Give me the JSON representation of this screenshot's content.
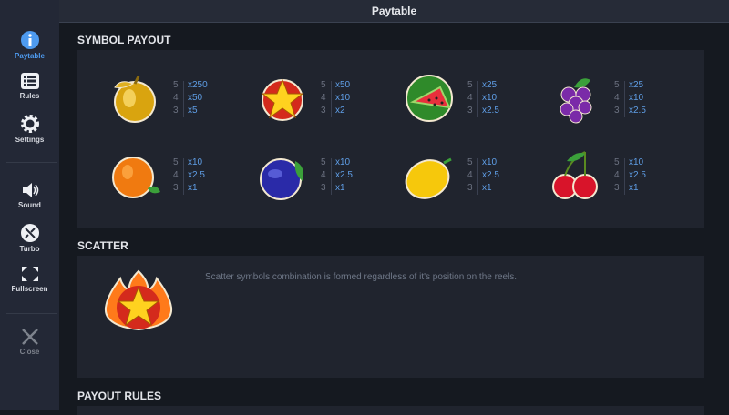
{
  "title": "Paytable",
  "sidebar": {
    "items": [
      {
        "label": "Paytable",
        "icon": "info-icon"
      },
      {
        "label": "Rules",
        "icon": "list-icon"
      },
      {
        "label": "Settings",
        "icon": "gear-icon"
      },
      {
        "label": "Sound",
        "icon": "speaker-icon"
      },
      {
        "label": "Turbo",
        "icon": "turbo-icon"
      },
      {
        "label": "Fullscreen",
        "icon": "fullscreen-icon"
      },
      {
        "label": "Close",
        "icon": "close-icon"
      }
    ],
    "active_color": "#4e9bf0"
  },
  "sections": {
    "symbol_payout": "SYMBOL PAYOUT",
    "scatter": "SCATTER",
    "payout_rules": "PAYOUT RULES"
  },
  "symbols": [
    {
      "name": "golden-apple",
      "counts": [
        "5",
        "4",
        "3"
      ],
      "values": [
        "x250",
        "x50",
        "x5"
      ]
    },
    {
      "name": "star",
      "counts": [
        "5",
        "4",
        "3"
      ],
      "values": [
        "x50",
        "x10",
        "x2"
      ]
    },
    {
      "name": "watermelon",
      "counts": [
        "5",
        "4",
        "3"
      ],
      "values": [
        "x25",
        "x10",
        "x2.5"
      ]
    },
    {
      "name": "grapes",
      "counts": [
        "5",
        "4",
        "3"
      ],
      "values": [
        "x25",
        "x10",
        "x2.5"
      ]
    },
    {
      "name": "orange",
      "counts": [
        "5",
        "4",
        "3"
      ],
      "values": [
        "x10",
        "x2.5",
        "x1"
      ]
    },
    {
      "name": "plum",
      "counts": [
        "5",
        "4",
        "3"
      ],
      "values": [
        "x10",
        "x2.5",
        "x1"
      ]
    },
    {
      "name": "lemon",
      "counts": [
        "5",
        "4",
        "3"
      ],
      "values": [
        "x10",
        "x2.5",
        "x1"
      ]
    },
    {
      "name": "cherries",
      "counts": [
        "5",
        "4",
        "3"
      ],
      "values": [
        "x10",
        "x2.5",
        "x1"
      ]
    }
  ],
  "scatter": {
    "symbol": "fire-star",
    "text": "Scatter symbols combination is formed regardless of it's position on the reels."
  }
}
